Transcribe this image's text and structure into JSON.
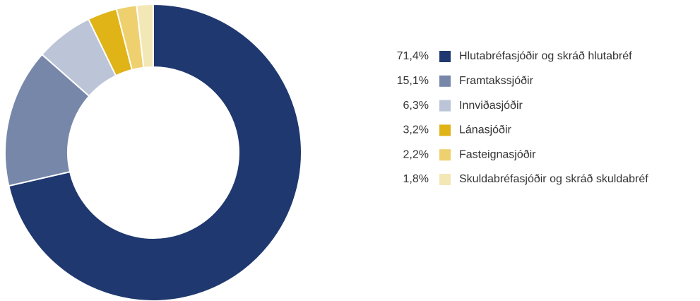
{
  "chart_data": {
    "type": "pie",
    "categories": [
      "Hlutabréfasjóðir og skráð hlutabréf",
      "Framtakssjóðir",
      "Innviðasjóðir",
      "Lánasjóðir",
      "Fasteignasjóðir",
      "Skuldabréfasjóðir og skráð skuldabréf"
    ],
    "values": [
      71.4,
      15.1,
      6.3,
      3.2,
      2.2,
      1.8
    ],
    "value_labels": [
      "71,4%",
      "15,1%",
      "6,3%",
      "3,2%",
      "2,2%",
      "1,8%"
    ],
    "colors": [
      "#1f386f",
      "#7787a9",
      "#bcc5d7",
      "#e0b317",
      "#eed06f",
      "#f4e7b6"
    ]
  }
}
